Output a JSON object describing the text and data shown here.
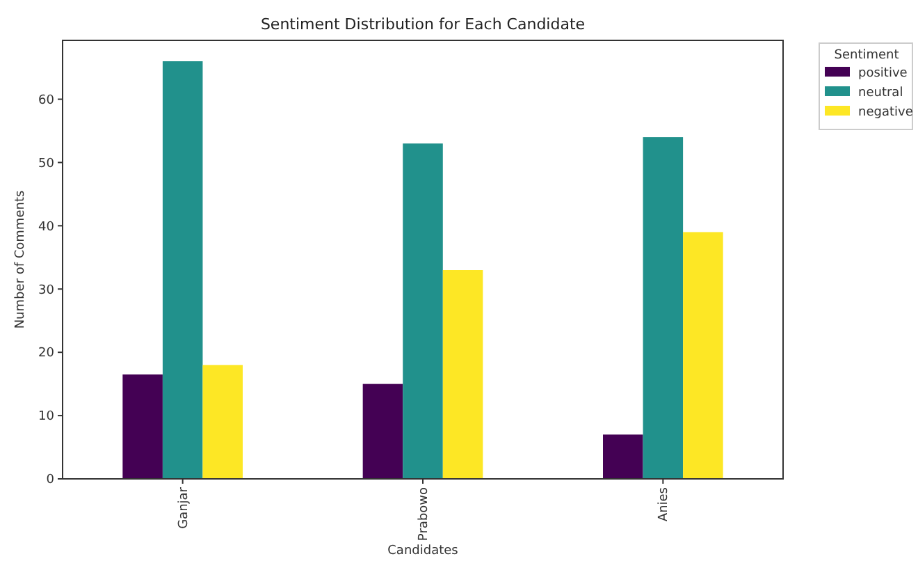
{
  "chart_data": {
    "type": "bar",
    "title": "Sentiment Distribution for Each Candidate",
    "xlabel": "Candidates",
    "ylabel": "Number of Comments",
    "legend_title": "Sentiment",
    "legend": "top right",
    "categories": [
      "Ganjar",
      "Prabowo",
      "Anies"
    ],
    "series": [
      {
        "name": "positive",
        "color": "#440154",
        "values": [
          16.5,
          15,
          7
        ]
      },
      {
        "name": "neutral",
        "color": "#21918c",
        "values": [
          66,
          53,
          54
        ]
      },
      {
        "name": "negative",
        "color": "#fde725",
        "values": [
          18,
          33,
          39
        ]
      }
    ],
    "ylim": [
      0,
      69.3
    ],
    "yticks": [
      0,
      10,
      20,
      30,
      40,
      50,
      60
    ]
  }
}
